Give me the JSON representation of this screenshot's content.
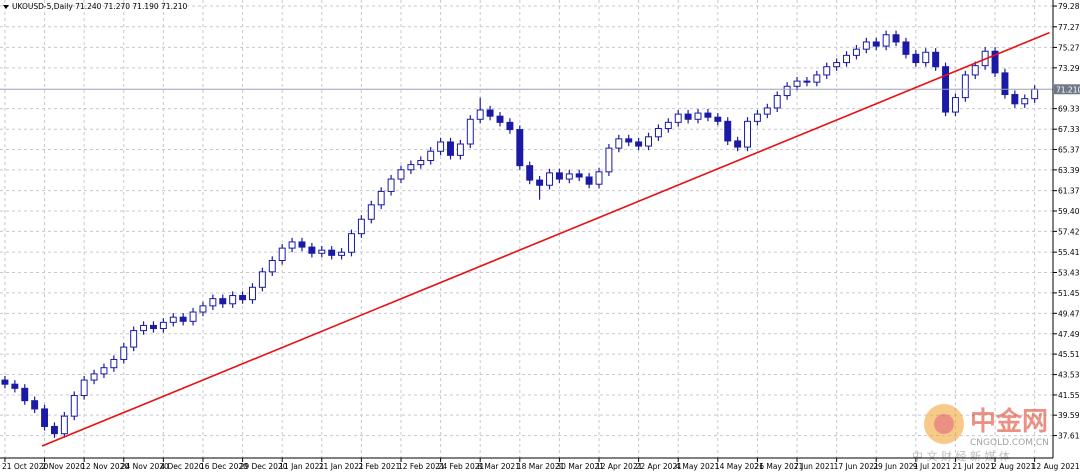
{
  "chart_data": {
    "type": "candlestick",
    "title": "UKOUSD-5,Daily  71.240 71.270 71.190 71.210",
    "watermark": {
      "brand": "中金网",
      "site": "CNGOLD.COM.CN",
      "slogan": "中 文 财 经 新 媒 体"
    },
    "up_color": "#ffffff",
    "down_color": "#1a1aa6",
    "edge_color": "#1a1aa6",
    "grid": true,
    "xlim": [
      -1,
      211.1
    ],
    "ylim": [
      35.44,
      79.87
    ],
    "xticks": [
      {
        "value": 0,
        "label": "21 Oct 2020"
      },
      {
        "value": 8,
        "label": "2 Nov 2020"
      },
      {
        "value": 16,
        "label": "12 Nov 2020"
      },
      {
        "value": 24,
        "label": "24 Nov 2020"
      },
      {
        "value": 32,
        "label": "4 Dec 2020"
      },
      {
        "value": 40,
        "label": "16 Dec 2020"
      },
      {
        "value": 48,
        "label": "29 Dec 2020"
      },
      {
        "value": 56,
        "label": "11 Jan 2021"
      },
      {
        "value": 64,
        "label": "21 Jan 2021"
      },
      {
        "value": 72,
        "label": "2 Feb 2021"
      },
      {
        "value": 80,
        "label": "12 Feb 2021"
      },
      {
        "value": 88,
        "label": "24 Feb 2021"
      },
      {
        "value": 96,
        "label": "8 Mar 2021"
      },
      {
        "value": 104,
        "label": "18 Mar 2021"
      },
      {
        "value": 112,
        "label": "30 Mar 2021"
      },
      {
        "value": 120,
        "label": "12 Apr 2021"
      },
      {
        "value": 128,
        "label": "22 Apr 2021"
      },
      {
        "value": 136,
        "label": "4 May 2021"
      },
      {
        "value": 144,
        "label": "14 May 2021"
      },
      {
        "value": 152,
        "label": "26 May 2021"
      },
      {
        "value": 160,
        "label": "7 Jun 2021"
      },
      {
        "value": 168,
        "label": "17 Jun 2021"
      },
      {
        "value": 176,
        "label": "29 Jun 2021"
      },
      {
        "value": 184,
        "label": "9 Jul 2021"
      },
      {
        "value": 192,
        "label": "21 Jul 2021"
      },
      {
        "value": 200,
        "label": "2 Aug 2021"
      },
      {
        "value": 208,
        "label": "12 Aug 2021"
      }
    ],
    "yticks": [
      {
        "value": 79.285,
        "label": "79.285"
      },
      {
        "value": 77.27,
        "label": "77.270"
      },
      {
        "value": 75.27,
        "label": "75.270"
      },
      {
        "value": 73.29,
        "label": "73.290"
      },
      {
        "value": 69.33,
        "label": "69.330"
      },
      {
        "value": 67.335,
        "label": "67.335"
      },
      {
        "value": 65.37,
        "label": "65.370"
      },
      {
        "value": 63.39,
        "label": "63.390"
      },
      {
        "value": 61.375,
        "label": "61.375"
      },
      {
        "value": 59.4,
        "label": "59.400"
      },
      {
        "value": 57.425,
        "label": "57.425"
      },
      {
        "value": 55.41,
        "label": "55.410"
      },
      {
        "value": 53.435,
        "label": "53.435"
      },
      {
        "value": 51.455,
        "label": "51.455"
      },
      {
        "value": 49.475,
        "label": "49.475"
      },
      {
        "value": 47.49,
        "label": "47.490"
      },
      {
        "value": 45.515,
        "label": "45.515"
      },
      {
        "value": 43.535,
        "label": "43.535"
      },
      {
        "value": 41.555,
        "label": "41.555"
      },
      {
        "value": 39.595,
        "label": "39.595"
      },
      {
        "value": 37.615,
        "label": "37.615"
      }
    ],
    "current_price": {
      "value": 71.21,
      "label": "71.210"
    },
    "trendline": {
      "x": [
        7.5,
        211
      ],
      "y": [
        36.6,
        76.7
      ],
      "color": "#e81010"
    },
    "x": [
      0,
      2,
      4,
      6,
      8,
      10,
      12,
      14,
      16,
      18,
      20,
      22,
      24,
      26,
      28,
      30,
      32,
      34,
      36,
      38,
      40,
      42,
      44,
      46,
      48,
      50,
      52,
      54,
      56,
      58,
      60,
      62,
      64,
      66,
      68,
      70,
      72,
      74,
      76,
      78,
      80,
      82,
      84,
      86,
      88,
      90,
      92,
      94,
      96,
      98,
      100,
      102,
      104,
      106,
      108,
      110,
      112,
      114,
      116,
      118,
      120,
      122,
      124,
      126,
      128,
      130,
      132,
      134,
      136,
      138,
      140,
      142,
      144,
      146,
      148,
      150,
      152,
      154,
      156,
      158,
      160,
      162,
      164,
      166,
      168,
      170,
      172,
      174,
      176,
      178,
      180,
      182,
      184,
      186,
      188,
      190,
      192,
      194,
      196,
      198,
      200,
      202,
      204,
      206,
      208
    ],
    "open": [
      43.0,
      42.6,
      42.2,
      41.0,
      40.2,
      38.5,
      37.8,
      39.5,
      41.5,
      43.0,
      43.6,
      44.2,
      45.0,
      46.2,
      47.8,
      48.3,
      48.0,
      48.6,
      49.1,
      48.7,
      49.6,
      50.2,
      50.9,
      50.4,
      51.2,
      50.8,
      52.0,
      53.5,
      54.6,
      55.8,
      56.4,
      55.9,
      55.3,
      55.6,
      55.1,
      55.4,
      57.2,
      58.6,
      60.0,
      61.3,
      62.5,
      63.4,
      63.9,
      64.3,
      65.2,
      66.1,
      64.8,
      65.9,
      68.3,
      69.2,
      68.6,
      68.0,
      67.3,
      63.8,
      62.4,
      61.9,
      63.1,
      62.5,
      63.0,
      62.7,
      62.0,
      63.2,
      65.5,
      66.4,
      66.1,
      65.7,
      66.6,
      67.4,
      68.0,
      68.8,
      68.3,
      68.9,
      68.5,
      68.1,
      66.2,
      65.6,
      68.1,
      68.8,
      69.4,
      70.6,
      71.5,
      72.0,
      71.9,
      72.6,
      73.4,
      73.8,
      74.5,
      75.1,
      75.8,
      75.4,
      76.5,
      75.8,
      74.6,
      73.8,
      74.8,
      73.4,
      69.0,
      70.4,
      72.6,
      73.5,
      74.9,
      72.8,
      70.7,
      69.8,
      70.3
    ],
    "high": [
      43.4,
      43.0,
      42.6,
      41.4,
      40.6,
      38.9,
      39.9,
      41.9,
      43.4,
      44.0,
      44.6,
      45.4,
      46.6,
      48.2,
      48.7,
      48.7,
      49.0,
      49.5,
      49.5,
      50.0,
      50.6,
      51.3,
      51.3,
      51.6,
      51.6,
      52.4,
      53.9,
      55.0,
      56.2,
      56.8,
      56.8,
      56.3,
      56.0,
      56.0,
      55.8,
      57.6,
      59.0,
      60.4,
      61.7,
      62.9,
      63.8,
      64.3,
      64.7,
      65.6,
      66.5,
      66.5,
      66.3,
      68.7,
      70.4,
      69.6,
      69.0,
      68.4,
      67.7,
      64.2,
      62.8,
      63.5,
      63.5,
      63.4,
      63.4,
      63.1,
      63.6,
      65.9,
      66.8,
      66.8,
      66.5,
      67.0,
      67.8,
      68.4,
      69.2,
      69.2,
      69.3,
      69.3,
      68.9,
      68.5,
      66.6,
      68.5,
      69.2,
      69.8,
      71.0,
      71.9,
      72.4,
      72.4,
      73.0,
      73.8,
      74.2,
      74.9,
      75.5,
      76.2,
      76.2,
      76.9,
      76.9,
      76.2,
      75.0,
      75.2,
      75.2,
      73.8,
      70.8,
      73.0,
      73.9,
      75.3,
      75.3,
      73.2,
      71.1,
      70.7,
      71.6
    ],
    "low": [
      42.2,
      41.8,
      40.6,
      39.8,
      38.1,
      37.4,
      37.4,
      39.1,
      41.1,
      42.6,
      43.2,
      43.8,
      44.6,
      45.8,
      47.4,
      47.6,
      47.6,
      48.2,
      48.3,
      48.3,
      49.2,
      49.8,
      50.0,
      50.0,
      50.4,
      50.4,
      51.6,
      53.1,
      54.2,
      55.4,
      55.5,
      54.9,
      54.9,
      54.7,
      54.7,
      55.0,
      56.8,
      58.2,
      59.6,
      60.9,
      62.1,
      63.0,
      63.5,
      63.9,
      64.8,
      64.4,
      64.4,
      65.5,
      67.9,
      68.2,
      67.6,
      66.9,
      63.4,
      62.0,
      60.5,
      61.5,
      62.1,
      62.1,
      62.3,
      61.6,
      61.6,
      62.8,
      65.1,
      65.7,
      65.3,
      65.3,
      66.2,
      67.0,
      67.6,
      67.9,
      67.9,
      68.1,
      67.7,
      65.8,
      65.2,
      65.2,
      67.7,
      68.4,
      69.0,
      70.2,
      71.1,
      71.5,
      71.5,
      72.2,
      73.0,
      73.4,
      74.1,
      74.7,
      75.0,
      75.0,
      75.4,
      74.2,
      73.4,
      73.4,
      73.0,
      68.6,
      68.6,
      70.0,
      72.2,
      73.1,
      72.4,
      70.3,
      69.4,
      69.4,
      69.9
    ],
    "close": [
      42.6,
      42.2,
      41.0,
      40.2,
      38.5,
      37.8,
      39.5,
      41.5,
      43.0,
      43.6,
      44.2,
      45.0,
      46.2,
      47.8,
      48.3,
      48.0,
      48.6,
      49.1,
      48.7,
      49.6,
      50.2,
      50.9,
      50.4,
      51.2,
      50.8,
      52.0,
      53.5,
      54.6,
      55.8,
      56.4,
      55.9,
      55.3,
      55.6,
      55.1,
      55.4,
      57.2,
      58.6,
      60.0,
      61.3,
      62.5,
      63.4,
      63.9,
      64.3,
      65.2,
      66.1,
      64.8,
      65.9,
      68.3,
      69.2,
      68.6,
      68.0,
      67.3,
      63.8,
      62.4,
      61.9,
      63.1,
      62.5,
      63.0,
      62.7,
      62.0,
      63.2,
      65.5,
      66.4,
      66.1,
      65.7,
      66.6,
      67.4,
      68.0,
      68.8,
      68.3,
      68.9,
      68.5,
      68.1,
      66.2,
      65.6,
      68.1,
      68.8,
      69.4,
      70.6,
      71.5,
      72.0,
      71.9,
      72.6,
      73.4,
      73.8,
      74.5,
      75.1,
      75.8,
      75.4,
      76.5,
      75.8,
      74.6,
      73.8,
      74.8,
      73.4,
      69.0,
      70.4,
      72.6,
      73.5,
      74.9,
      72.8,
      70.7,
      69.8,
      70.3,
      71.21
    ]
  }
}
